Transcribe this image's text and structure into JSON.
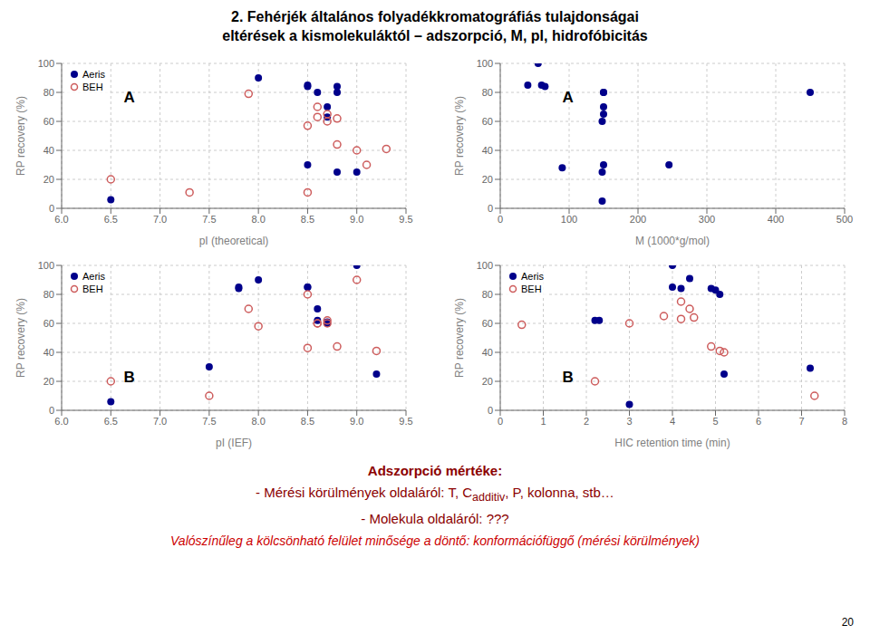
{
  "title": "2. Fehérjék általános folyadékkromatográfiás tulajdonságai",
  "subtitle": "eltérések a kismolekuláktól – adszorpció, M, pI, hidrofóbicitás",
  "annotations": [
    {
      "text": "Adszorpció mértéke:",
      "color": "#8B0000"
    },
    {
      "text": [
        "- Mérési körülmények oldaláról: T, C",
        "additiv",
        ", P, kolonna, stb…"
      ],
      "color": "#8B0000"
    },
    {
      "text": "- Molekula oldaláról: ???",
      "color": "#8B0000"
    },
    {
      "text": "Valószínűleg a kölcsönható felület minősége a döntő: konformációfüggő (mérési körülmények)",
      "color": "#CC0000"
    },
    {
      "text": "20",
      "color": "#000000"
    }
  ],
  "chart_data": [
    {
      "type": "scatter",
      "title": "A",
      "xlabel": "pI (theoretical)",
      "ylabel": "RP recovery (%)",
      "xlim": [
        6,
        9.5
      ],
      "ylim": [
        0,
        100
      ],
      "xticks": [
        {
          "value": 6,
          "label": "6.0"
        },
        6.5,
        {
          "value": 7,
          "label": "7.0"
        },
        7.5,
        {
          "value": 8,
          "label": "8.0"
        },
        8.5,
        {
          "value": 9,
          "label": "9.0"
        },
        9.5
      ],
      "yticks": [
        0,
        20,
        40,
        60,
        80,
        100
      ],
      "grid": true,
      "legend": "upper left",
      "series": [
        {
          "name": "Aeris",
          "color": "#00008B",
          "marker": "filled circle",
          "x": [
            6.5,
            8.0,
            8.5,
            8.5,
            8.5,
            8.6,
            8.7,
            8.7,
            8.8,
            8.8,
            8.8,
            9.0
          ],
          "values": [
            6,
            90,
            30,
            85,
            84,
            80,
            70,
            63,
            80,
            84,
            25,
            25
          ]
        },
        {
          "name": "BEH",
          "color": "#CD5C5C",
          "marker": "open circle",
          "x": [
            6.5,
            7.3,
            7.9,
            8.5,
            8.5,
            8.6,
            8.6,
            8.7,
            8.7,
            8.8,
            8.8,
            9.0,
            9.1,
            9.3
          ],
          "values": [
            20,
            11,
            79,
            57,
            11,
            70,
            63,
            60,
            65,
            62,
            44,
            40,
            30,
            41
          ]
        }
      ]
    },
    {
      "type": "scatter",
      "title": "A",
      "xlabel": "M (1000*g/mol)",
      "ylabel": "RP recovery (%)",
      "xlim": [
        0,
        500
      ],
      "ylim": [
        0,
        100
      ],
      "xticks": [
        0,
        100,
        200,
        300,
        400,
        500
      ],
      "yticks": [
        0,
        20,
        40,
        60,
        80,
        100
      ],
      "grid": true,
      "series": [
        {
          "color": "#00008B",
          "marker": "filled circle",
          "x": [
            40,
            55,
            60,
            65,
            90,
            148,
            148,
            148,
            150,
            150,
            150,
            150,
            150,
            245,
            450
          ],
          "values": [
            85,
            100,
            85,
            84,
            28,
            25,
            5,
            60,
            65,
            70,
            80,
            80,
            30,
            30,
            80
          ]
        }
      ]
    },
    {
      "type": "scatter",
      "title": "B",
      "xlabel": "pI (IEF)",
      "ylabel": "RP recovery (%)",
      "xlim": [
        6,
        9.5
      ],
      "ylim": [
        0,
        100
      ],
      "xticks": [
        {
          "value": 6,
          "label": "6.0"
        },
        6.5,
        {
          "value": 7,
          "label": "7.0"
        },
        7.5,
        {
          "value": 8,
          "label": "8.0"
        },
        8.5,
        {
          "value": 9,
          "label": "9.0"
        },
        9.5
      ],
      "yticks": [
        0,
        20,
        40,
        60,
        80,
        100
      ],
      "grid": true,
      "legend": "upper left",
      "series": [
        {
          "name": "Aeris",
          "color": "#00008B",
          "marker": "filled circle",
          "x": [
            6.5,
            7.5,
            7.8,
            7.8,
            8.0,
            8.5,
            8.5,
            8.6,
            8.6,
            8.7,
            8.7,
            9.0,
            9.2
          ],
          "values": [
            6,
            30,
            84,
            85,
            90,
            85,
            85,
            70,
            62,
            60,
            61,
            100,
            25
          ]
        },
        {
          "name": "BEH",
          "color": "#CD5C5C",
          "marker": "open circle",
          "x": [
            6.5,
            7.5,
            7.9,
            8.0,
            8.5,
            8.5,
            8.6,
            8.6,
            8.7,
            8.7,
            8.8,
            9.0,
            9.2
          ],
          "values": [
            20,
            10,
            70,
            58,
            43,
            80,
            60,
            60,
            60,
            62,
            44,
            90,
            41
          ]
        }
      ]
    },
    {
      "type": "scatter",
      "title": "B",
      "xlabel": "HIC retention time (min)",
      "ylabel": "RP recovery (%)",
      "xlim": [
        0,
        8
      ],
      "ylim": [
        0,
        100
      ],
      "xticks": [
        0,
        1,
        2,
        3,
        4,
        5,
        6,
        7,
        8
      ],
      "yticks": [
        0,
        20,
        40,
        60,
        80,
        100
      ],
      "grid": true,
      "legend": "upper left",
      "series": [
        {
          "name": "Aeris",
          "color": "#00008B",
          "marker": "filled circle",
          "x": [
            2.2,
            2.3,
            3.0,
            4.0,
            4.0,
            4.2,
            4.4,
            4.9,
            5.0,
            5.1,
            5.2,
            7.2
          ],
          "values": [
            62,
            62,
            4,
            100,
            85,
            84,
            91,
            84,
            83,
            80,
            25,
            29
          ]
        },
        {
          "name": "BEH",
          "color": "#CD5C5C",
          "marker": "open circle",
          "x": [
            0.5,
            2.2,
            3.0,
            3.8,
            4.2,
            4.2,
            4.4,
            4.5,
            4.9,
            5.1,
            5.2,
            7.3
          ],
          "values": [
            59,
            20,
            60,
            65,
            75,
            63,
            70,
            64,
            44,
            41,
            40,
            10
          ]
        }
      ]
    }
  ]
}
